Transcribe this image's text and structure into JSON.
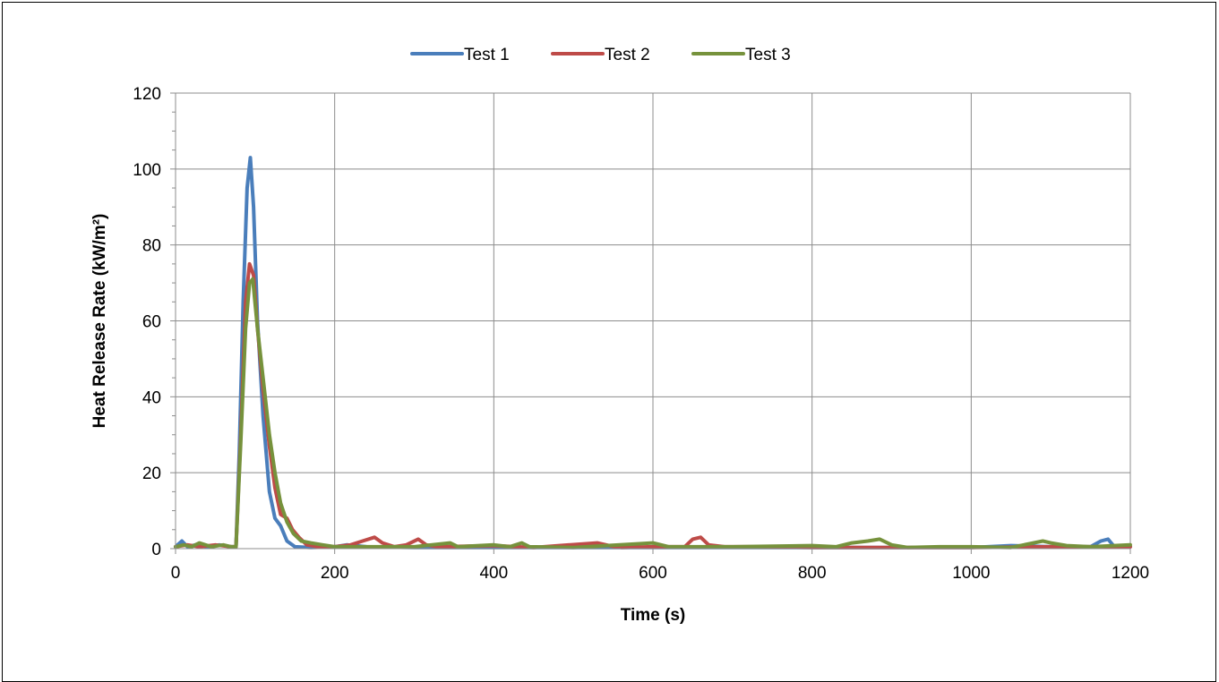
{
  "chart_data": {
    "type": "line",
    "xlabel": "Time (s)",
    "ylabel": "Heat Release Rate (kW/m²)",
    "xlim": [
      0,
      1200
    ],
    "ylim": [
      0,
      120
    ],
    "x_ticks": [
      0,
      200,
      400,
      600,
      800,
      1000,
      1200
    ],
    "y_ticks": [
      0,
      20,
      40,
      60,
      80,
      100,
      120
    ],
    "grid": true,
    "legend_position": "top-center",
    "series": [
      {
        "name": "Test 1",
        "color": "#4a7ebb",
        "points": [
          [
            0,
            0.5
          ],
          [
            8,
            2
          ],
          [
            15,
            0.5
          ],
          [
            25,
            1
          ],
          [
            40,
            0.5
          ],
          [
            55,
            1
          ],
          [
            70,
            0.5
          ],
          [
            76,
            0.5
          ],
          [
            80,
            25
          ],
          [
            85,
            65
          ],
          [
            90,
            95
          ],
          [
            94,
            103
          ],
          [
            98,
            90
          ],
          [
            103,
            60
          ],
          [
            110,
            35
          ],
          [
            118,
            15
          ],
          [
            125,
            8
          ],
          [
            132,
            6
          ],
          [
            140,
            2
          ],
          [
            150,
            0.5
          ],
          [
            170,
            0.3
          ],
          [
            200,
            0.5
          ],
          [
            215,
            1
          ],
          [
            240,
            0.5
          ],
          [
            300,
            0.3
          ],
          [
            400,
            0.3
          ],
          [
            500,
            0.3
          ],
          [
            600,
            0.3
          ],
          [
            700,
            0.3
          ],
          [
            800,
            0.3
          ],
          [
            900,
            0.3
          ],
          [
            1000,
            0.3
          ],
          [
            1050,
            0.8
          ],
          [
            1100,
            0.5
          ],
          [
            1150,
            0.5
          ],
          [
            1163,
            2
          ],
          [
            1172,
            2.5
          ],
          [
            1180,
            0.5
          ],
          [
            1200,
            0.5
          ]
        ]
      },
      {
        "name": "Test 2",
        "color": "#be4b48",
        "points": [
          [
            0,
            0.5
          ],
          [
            15,
            1
          ],
          [
            30,
            0.5
          ],
          [
            50,
            1
          ],
          [
            70,
            0.5
          ],
          [
            76,
            0.5
          ],
          [
            82,
            30
          ],
          [
            88,
            65
          ],
          [
            93,
            75
          ],
          [
            98,
            72
          ],
          [
            103,
            58
          ],
          [
            110,
            42
          ],
          [
            118,
            27
          ],
          [
            125,
            16
          ],
          [
            132,
            9
          ],
          [
            140,
            8
          ],
          [
            147,
            5
          ],
          [
            155,
            3
          ],
          [
            165,
            1
          ],
          [
            180,
            0.5
          ],
          [
            200,
            0.5
          ],
          [
            220,
            1
          ],
          [
            235,
            2
          ],
          [
            250,
            3
          ],
          [
            260,
            1.5
          ],
          [
            275,
            0.5
          ],
          [
            290,
            1
          ],
          [
            305,
            2.5
          ],
          [
            315,
            1
          ],
          [
            330,
            0.5
          ],
          [
            400,
            0.8
          ],
          [
            450,
            0.3
          ],
          [
            530,
            1.5
          ],
          [
            545,
            0.8
          ],
          [
            560,
            0.3
          ],
          [
            600,
            0.5
          ],
          [
            640,
            0.5
          ],
          [
            650,
            2.5
          ],
          [
            660,
            3
          ],
          [
            670,
            1
          ],
          [
            690,
            0.5
          ],
          [
            720,
            0.5
          ],
          [
            800,
            0.3
          ],
          [
            900,
            0.3
          ],
          [
            1000,
            0.3
          ],
          [
            1100,
            0.5
          ],
          [
            1200,
            0.5
          ]
        ]
      },
      {
        "name": "Test 3",
        "color": "#76923c",
        "points": [
          [
            0,
            0.5
          ],
          [
            10,
            1
          ],
          [
            20,
            0.5
          ],
          [
            30,
            1.5
          ],
          [
            45,
            0.5
          ],
          [
            60,
            1
          ],
          [
            70,
            0.5
          ],
          [
            76,
            0.5
          ],
          [
            82,
            28
          ],
          [
            88,
            58
          ],
          [
            93,
            70
          ],
          [
            97,
            71
          ],
          [
            103,
            58
          ],
          [
            110,
            45
          ],
          [
            118,
            30
          ],
          [
            125,
            20
          ],
          [
            132,
            12
          ],
          [
            140,
            7
          ],
          [
            148,
            4
          ],
          [
            158,
            2
          ],
          [
            170,
            1.5
          ],
          [
            185,
            1
          ],
          [
            200,
            0.5
          ],
          [
            300,
            0.5
          ],
          [
            345,
            1.5
          ],
          [
            355,
            0.5
          ],
          [
            400,
            1
          ],
          [
            420,
            0.5
          ],
          [
            435,
            1.5
          ],
          [
            445,
            0.5
          ],
          [
            500,
            0.3
          ],
          [
            600,
            1.5
          ],
          [
            620,
            0.5
          ],
          [
            700,
            0.5
          ],
          [
            800,
            0.8
          ],
          [
            830,
            0.5
          ],
          [
            850,
            1.5
          ],
          [
            870,
            2
          ],
          [
            885,
            2.5
          ],
          [
            900,
            1
          ],
          [
            920,
            0.3
          ],
          [
            960,
            0.5
          ],
          [
            1000,
            0.5
          ],
          [
            1050,
            0.3
          ],
          [
            1090,
            2
          ],
          [
            1100,
            1.5
          ],
          [
            1120,
            0.8
          ],
          [
            1150,
            0.5
          ],
          [
            1180,
            0.8
          ],
          [
            1200,
            1
          ]
        ]
      }
    ]
  }
}
